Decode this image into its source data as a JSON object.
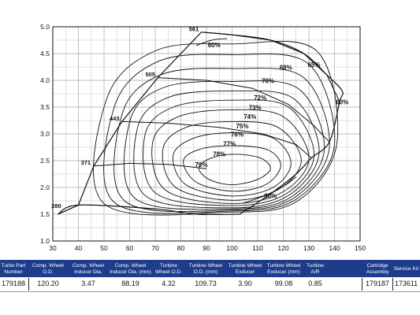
{
  "chart_data": {
    "type": "compressor_map",
    "x_ticks": [
      30,
      40,
      50,
      60,
      70,
      80,
      90,
      100,
      110,
      120,
      130,
      140,
      150
    ],
    "y_ticks": [
      "1.0",
      "1.5",
      "2.0",
      "2.5",
      "3.0",
      "3.5",
      "4.0",
      "4.5",
      "5.0"
    ],
    "xlim": [
      30,
      150
    ],
    "ylim": [
      1.0,
      5.0
    ],
    "grid": true,
    "speed_lines": [
      {
        "label": "280",
        "points": [
          [
            32,
            1.5
          ],
          [
            40,
            1.67
          ]
        ]
      },
      {
        "label": "371",
        "points": [
          [
            46,
            2.4
          ],
          [
            60,
            2.45
          ],
          [
            75,
            2.43
          ],
          [
            90,
            2.35
          ]
        ]
      },
      {
        "label": "443",
        "points": [
          [
            57,
            3.23
          ],
          [
            75,
            3.2
          ],
          [
            95,
            3.12
          ],
          [
            112,
            3.0
          ],
          [
            125,
            2.8
          ],
          [
            131,
            2.55
          ]
        ]
      },
      {
        "label": "505",
        "points": [
          [
            71,
            4.05
          ],
          [
            90,
            4.0
          ],
          [
            108,
            3.85
          ],
          [
            122,
            3.55
          ],
          [
            132,
            3.15
          ],
          [
            138,
            2.85
          ]
        ]
      },
      {
        "label": "561",
        "points": [
          [
            88,
            4.9
          ],
          [
            100,
            4.85
          ],
          [
            115,
            4.75
          ],
          [
            128,
            4.5
          ],
          [
            137,
            4.1
          ],
          [
            142,
            3.6
          ]
        ]
      }
    ],
    "surge_line": [
      [
        32,
        1.5
      ],
      [
        40,
        1.67
      ],
      [
        46,
        2.4
      ],
      [
        57,
        3.23
      ],
      [
        71,
        4.05
      ],
      [
        88,
        4.9
      ]
    ],
    "choke_line": [
      [
        88,
        4.9
      ],
      [
        100,
        4.85
      ],
      [
        115,
        4.75
      ],
      [
        128,
        4.5
      ],
      [
        137,
        4.1
      ],
      [
        143,
        3.8
      ],
      [
        142,
        3.6
      ],
      [
        138,
        2.85
      ],
      [
        131,
        2.55
      ],
      [
        125,
        2.25
      ],
      [
        115,
        1.88
      ],
      [
        103,
        1.5
      ]
    ],
    "lower_boundary": [
      [
        32,
        1.5
      ],
      [
        40,
        1.67
      ],
      [
        70,
        1.6
      ],
      [
        86,
        1.5
      ],
      [
        103,
        1.5
      ]
    ],
    "efficiency_islands": [
      {
        "label": "79%",
        "points": [
          [
            87,
            2.37
          ],
          [
            92,
            2.55
          ],
          [
            101,
            2.62
          ],
          [
            111,
            2.55
          ],
          [
            115,
            2.35
          ],
          [
            110,
            2.15
          ],
          [
            100,
            2.05
          ],
          [
            91,
            2.15
          ]
        ]
      },
      {
        "label": "78%",
        "points": [
          [
            81,
            2.5
          ],
          [
            88,
            2.72
          ],
          [
            101,
            2.78
          ],
          [
            114,
            2.7
          ],
          [
            119,
            2.4
          ],
          [
            113,
            2.05
          ],
          [
            100,
            1.93
          ],
          [
            86,
            2.1
          ]
        ]
      },
      {
        "label": "77%",
        "points": [
          [
            77,
            2.6
          ],
          [
            85,
            2.92
          ],
          [
            100,
            3.02
          ],
          [
            116,
            2.92
          ],
          [
            123,
            2.45
          ],
          [
            116,
            2.0
          ],
          [
            100,
            1.84
          ],
          [
            82,
            2.05
          ]
        ]
      },
      {
        "label": "76%",
        "points": [
          [
            73,
            2.72
          ],
          [
            82,
            3.12
          ],
          [
            100,
            3.23
          ],
          [
            118,
            3.12
          ],
          [
            127,
            2.5
          ],
          [
            118,
            1.96
          ],
          [
            100,
            1.76
          ],
          [
            78,
            2.0
          ]
        ]
      },
      {
        "label": "75%",
        "points": [
          [
            69,
            2.85
          ],
          [
            79,
            3.32
          ],
          [
            100,
            3.45
          ],
          [
            120,
            3.32
          ],
          [
            130,
            2.55
          ],
          [
            120,
            1.92
          ],
          [
            100,
            1.7
          ],
          [
            74,
            1.95
          ]
        ]
      },
      {
        "label": "74%",
        "points": [
          [
            66,
            2.98
          ],
          [
            77,
            3.5
          ],
          [
            100,
            3.63
          ],
          [
            122,
            3.5
          ],
          [
            132,
            2.6
          ],
          [
            121,
            1.88
          ],
          [
            100,
            1.66
          ],
          [
            70,
            1.9
          ]
        ]
      },
      {
        "label": "73%",
        "points": [
          [
            63,
            3.1
          ],
          [
            75,
            3.68
          ],
          [
            100,
            3.8
          ],
          [
            124,
            3.66
          ],
          [
            134,
            2.65
          ],
          [
            122,
            1.85
          ],
          [
            100,
            1.62
          ],
          [
            66,
            1.85
          ]
        ]
      },
      {
        "label": "72%",
        "points": [
          [
            60,
            3.22
          ],
          [
            73,
            3.86
          ],
          [
            100,
            3.98
          ],
          [
            126,
            3.84
          ],
          [
            136,
            2.7
          ],
          [
            123,
            1.82
          ],
          [
            100,
            1.6
          ],
          [
            62,
            1.8
          ]
        ]
      },
      {
        "label": "70%",
        "points": [
          [
            57,
            3.36
          ],
          [
            72,
            4.1
          ],
          [
            100,
            4.22
          ],
          [
            128,
            4.05
          ],
          [
            138,
            2.75
          ],
          [
            124,
            1.8
          ],
          [
            100,
            1.58
          ],
          [
            58,
            1.75
          ]
        ]
      },
      {
        "label": "68%",
        "points": [
          [
            54,
            3.5
          ],
          [
            71,
            4.35
          ],
          [
            100,
            4.48
          ],
          [
            130,
            4.3
          ],
          [
            140,
            2.8
          ],
          [
            125,
            1.78
          ],
          [
            100,
            1.56
          ],
          [
            54,
            1.72
          ]
        ]
      },
      {
        "label": "65%",
        "points": [
          [
            51,
            3.65
          ],
          [
            70,
            4.55
          ],
          [
            100,
            4.68
          ],
          [
            133,
            4.55
          ],
          [
            141,
            2.85
          ],
          [
            126,
            1.76
          ],
          [
            100,
            1.54
          ],
          [
            50,
            1.7
          ]
        ]
      },
      {
        "label": "60%",
        "points": [
          [
            104,
            1.7
          ],
          [
            113,
            1.85
          ],
          [
            121,
            2.05
          ],
          [
            125,
            2.2
          ]
        ]
      },
      {
        "label": "60%",
        "points": [
          [
            86,
            4.65
          ],
          [
            92,
            4.75
          ],
          [
            98,
            4.78
          ]
        ]
      }
    ],
    "rpm_labels": [
      {
        "text": "280",
        "x": 33.3,
        "y": 1.62
      },
      {
        "text": "371",
        "x": 44.8,
        "y": 2.43
      },
      {
        "text": "443",
        "x": 56.0,
        "y": 3.25
      },
      {
        "text": "505",
        "x": 70.0,
        "y": 4.07
      },
      {
        "text": "561",
        "x": 87.0,
        "y": 4.92
      }
    ],
    "eff_labels": [
      {
        "text": "60%",
        "x": 93,
        "y": 4.62
      },
      {
        "text": "68%",
        "x": 121,
        "y": 4.2
      },
      {
        "text": "65%",
        "x": 132,
        "y": 4.25
      },
      {
        "text": "70%",
        "x": 114,
        "y": 3.95
      },
      {
        "text": "72%",
        "x": 111,
        "y": 3.63
      },
      {
        "text": "73%",
        "x": 109,
        "y": 3.45
      },
      {
        "text": "74%",
        "x": 107,
        "y": 3.28
      },
      {
        "text": "75%",
        "x": 104,
        "y": 3.1
      },
      {
        "text": "76%",
        "x": 102,
        "y": 2.95
      },
      {
        "text": "77%",
        "x": 99,
        "y": 2.77
      },
      {
        "text": "78%",
        "x": 95,
        "y": 2.58
      },
      {
        "text": "79%",
        "x": 88,
        "y": 2.38
      },
      {
        "text": "60%",
        "x": 143,
        "y": 3.55
      },
      {
        "text": "60%",
        "x": 115,
        "y": 1.8
      }
    ]
  },
  "specs": {
    "headers": [
      "Turbo Part Number",
      "Comp. Wheel O.D.",
      "Comp. Wheel Inducer Dia.",
      "Comp. Wheel Inducer Dia. (mm)",
      "Turbine Wheel O.D.",
      "Turbine Wheel O.D. (mm)",
      "Turbine Wheel Exducer",
      "Turbine Wheel Exducer (mm)",
      "Turbine A/R",
      "Cartridge Assembly",
      "Service Kit"
    ],
    "values": [
      "179188",
      "120.20",
      "3.47",
      "88.19",
      "4.32",
      "109.73",
      "3.90",
      "99.08",
      "0.85",
      "179187",
      "173611"
    ]
  },
  "colors": {
    "header_bg": "#1d3c8c",
    "line": "#111111",
    "grid": "#a8a8a8"
  }
}
